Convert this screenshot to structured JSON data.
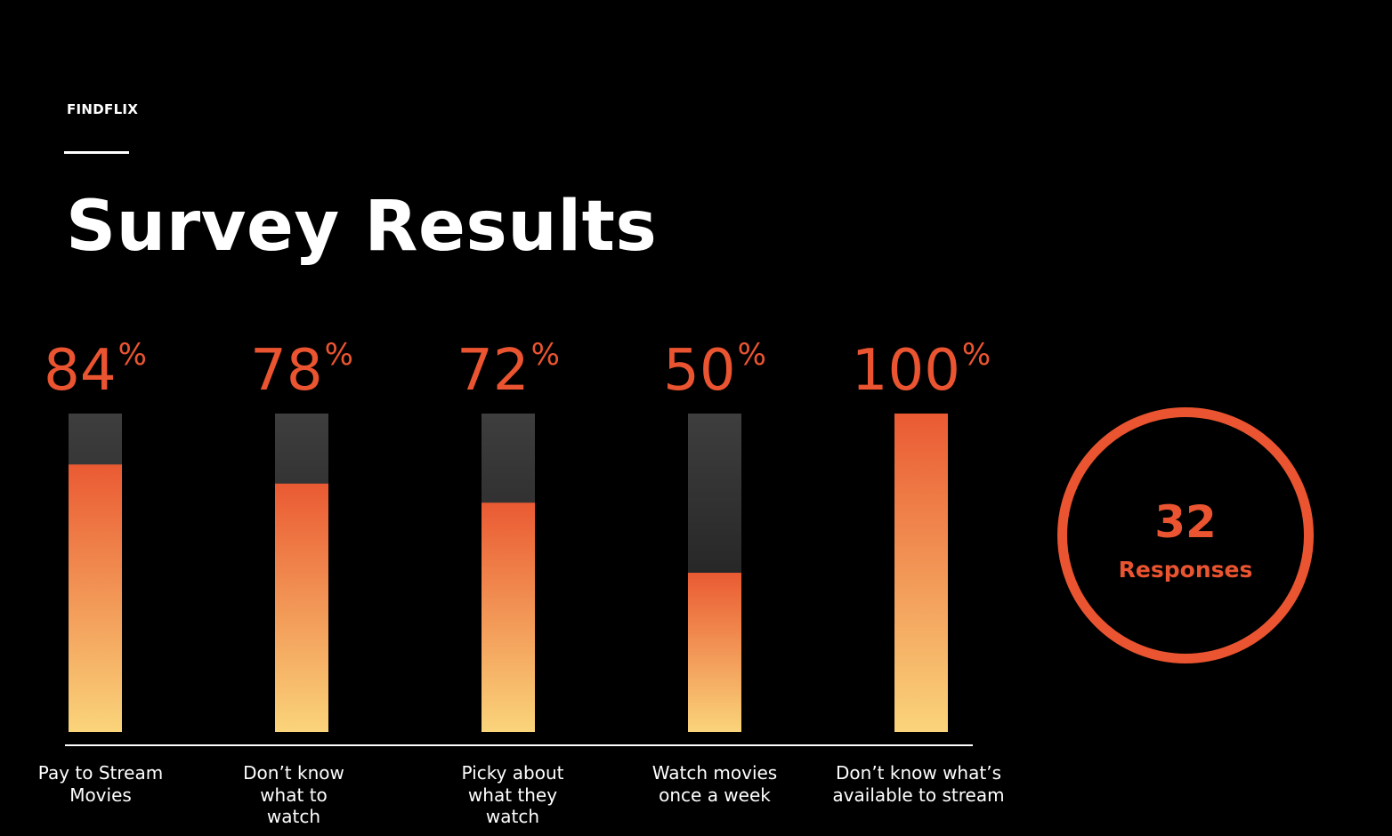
{
  "header": {
    "brand": "FINDFLIX",
    "title": "Survey Results"
  },
  "colors": {
    "background": "#000000",
    "accent": "#ea5430",
    "bar_fill_top": "#ea5a33",
    "bar_fill_bottom": "#fad47a",
    "bar_track_top": "#3e3e3e",
    "bar_track_bottom": "#111111",
    "text": "#ffffff"
  },
  "chart_data": {
    "type": "bar",
    "unit": "%",
    "ylim": [
      0,
      100
    ],
    "grid": false,
    "categories": [
      "Pay to Stream Movies",
      "Don’t know what to watch",
      "Picky about what they watch",
      "Watch movies once a week",
      "Don’t know what’s available to stream"
    ],
    "category_lines": [
      [
        "Pay to Stream",
        "Movies"
      ],
      [
        "Don’t know",
        "what to",
        "watch"
      ],
      [
        "Picky about",
        "what they",
        "watch"
      ],
      [
        "Watch movies",
        "once a week"
      ],
      [
        "Don’t know what’s",
        "available to stream"
      ]
    ],
    "values": [
      84,
      78,
      72,
      50,
      100
    ],
    "value_labels": [
      "84",
      "78",
      "72",
      "50",
      "100"
    ]
  },
  "summary": {
    "count": "32",
    "label": "Responses"
  }
}
